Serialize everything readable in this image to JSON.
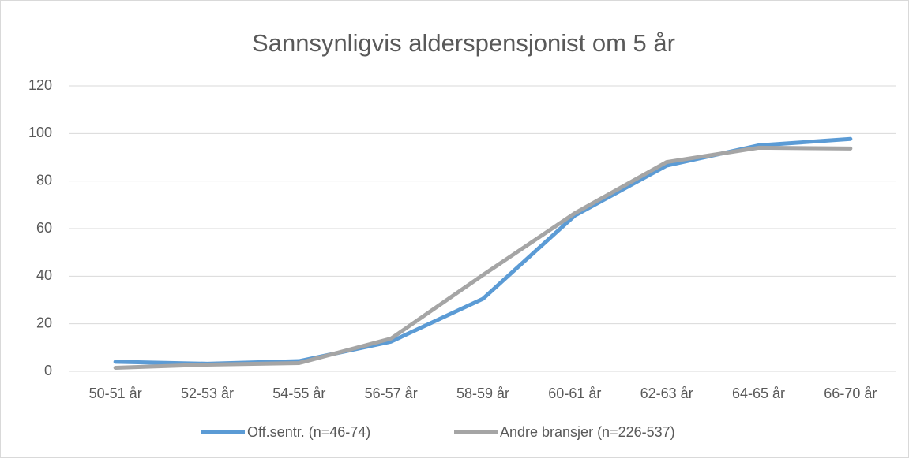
{
  "chart_data": {
    "type": "line",
    "title": "Sannsynligvis alderspensjonist om 5 år",
    "categories": [
      "50-51 år",
      "52-53 år",
      "54-55 år",
      "56-57 år",
      "58-59 år",
      "60-61 år",
      "62-63 år",
      "64-65 år",
      "66-70 år"
    ],
    "series": [
      {
        "name": "Off.sentr. (n=46-74)",
        "color": "#5b9bd5",
        "values": [
          4,
          3.2,
          4.3,
          12.5,
          30.5,
          65.5,
          86.5,
          95,
          97.7
        ]
      },
      {
        "name": "Andre bransjer (n=226-537)",
        "color": "#a5a5a5",
        "values": [
          1.5,
          2.8,
          3.5,
          13.8,
          40.5,
          66.5,
          88,
          94,
          93.7
        ]
      }
    ],
    "ylim": [
      0,
      120
    ],
    "yticks": [
      0,
      20,
      40,
      60,
      80,
      100,
      120
    ],
    "grid": true,
    "legend": "bottom"
  }
}
